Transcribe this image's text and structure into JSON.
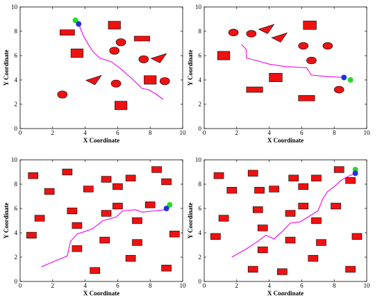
{
  "colors": {
    "obstacle": "#ee1111",
    "path": "#ee00ee",
    "start": "#2233dd",
    "goal": "#22dd22",
    "axis": "#000000"
  },
  "chart_data": [
    {
      "type": "scatter",
      "xlabel": "X Coordinate",
      "ylabel": "Y Coordinate",
      "xlim": [
        0,
        10
      ],
      "ylim": [
        0,
        10
      ],
      "xticks": [
        0,
        2,
        4,
        6,
        8,
        10
      ],
      "yticks": [
        0,
        2,
        4,
        6,
        8,
        10
      ],
      "start": [
        3.6,
        8.6
      ],
      "goal": [
        3.4,
        8.9
      ],
      "path": [
        [
          3.6,
          8.6
        ],
        [
          3.9,
          7.6
        ],
        [
          4.2,
          6.9
        ],
        [
          4.5,
          6.3
        ],
        [
          4.9,
          5.8
        ],
        [
          5.6,
          5.5
        ],
        [
          6.2,
          4.9
        ],
        [
          6.8,
          4.2
        ],
        [
          7.5,
          3.3
        ],
        [
          7.9,
          3.2
        ],
        [
          8.4,
          2.8
        ],
        [
          8.8,
          2.4
        ]
      ],
      "obstacles": [
        {
          "shape": "rect",
          "cx": 2.9,
          "cy": 7.9,
          "w": 0.9,
          "h": 0.45
        },
        {
          "shape": "rect",
          "cx": 3.5,
          "cy": 6.2,
          "w": 0.75,
          "h": 0.7
        },
        {
          "shape": "rect",
          "cx": 5.8,
          "cy": 8.5,
          "w": 0.75,
          "h": 0.65
        },
        {
          "shape": "rect",
          "cx": 7.5,
          "cy": 7.4,
          "w": 0.95,
          "h": 0.4
        },
        {
          "shape": "rect",
          "cx": 8.0,
          "cy": 4.0,
          "w": 0.75,
          "h": 0.7
        },
        {
          "shape": "rect",
          "cx": 6.2,
          "cy": 1.9,
          "w": 0.75,
          "h": 0.7
        },
        {
          "shape": "ellipse",
          "cx": 6.2,
          "cy": 7.1,
          "rx": 0.3,
          "ry": 0.3
        },
        {
          "shape": "ellipse",
          "cx": 5.8,
          "cy": 6.4,
          "rx": 0.3,
          "ry": 0.3
        },
        {
          "shape": "ellipse",
          "cx": 7.6,
          "cy": 5.7,
          "rx": 0.3,
          "ry": 0.3
        },
        {
          "shape": "ellipse",
          "cx": 5.9,
          "cy": 3.7,
          "rx": 0.3,
          "ry": 0.3
        },
        {
          "shape": "ellipse",
          "cx": 8.9,
          "cy": 3.9,
          "rx": 0.3,
          "ry": 0.3
        },
        {
          "shape": "ellipse",
          "cx": 2.6,
          "cy": 2.8,
          "rx": 0.3,
          "ry": 0.3
        },
        {
          "shape": "triangle",
          "cx": 4.5,
          "cy": 4.0,
          "size": 0.5
        },
        {
          "shape": "triangle",
          "cx": 8.5,
          "cy": 5.8,
          "size": 0.5
        }
      ]
    },
    {
      "type": "scatter",
      "xlabel": "X Coordinate",
      "ylabel": "Y Coordinate",
      "xlim": [
        0,
        10
      ],
      "ylim": [
        0,
        10
      ],
      "xticks": [
        0,
        2,
        4,
        6,
        8,
        10
      ],
      "yticks": [
        0,
        2,
        4,
        6,
        8,
        10
      ],
      "start": [
        8.6,
        4.2
      ],
      "goal": [
        9.0,
        4.0
      ],
      "path": [
        [
          2.3,
          6.9
        ],
        [
          2.6,
          6.5
        ],
        [
          2.6,
          5.8
        ],
        [
          3.2,
          5.6
        ],
        [
          4.0,
          5.3
        ],
        [
          5.0,
          5.1
        ],
        [
          6.3,
          5.0
        ],
        [
          6.6,
          4.4
        ],
        [
          7.4,
          4.3
        ],
        [
          8.6,
          4.2
        ]
      ],
      "obstacles": [
        {
          "shape": "rect",
          "cx": 6.5,
          "cy": 8.5,
          "w": 0.8,
          "h": 0.7
        },
        {
          "shape": "rect",
          "cx": 1.2,
          "cy": 6.0,
          "w": 0.75,
          "h": 0.7
        },
        {
          "shape": "rect",
          "cx": 4.4,
          "cy": 4.2,
          "w": 0.8,
          "h": 0.7
        },
        {
          "shape": "rect",
          "cx": 3.1,
          "cy": 3.2,
          "w": 1.0,
          "h": 0.45
        },
        {
          "shape": "rect",
          "cx": 6.3,
          "cy": 2.5,
          "w": 1.0,
          "h": 0.45
        },
        {
          "shape": "ellipse",
          "cx": 1.8,
          "cy": 7.9,
          "rx": 0.3,
          "ry": 0.28
        },
        {
          "shape": "ellipse",
          "cx": 2.9,
          "cy": 7.8,
          "rx": 0.3,
          "ry": 0.28
        },
        {
          "shape": "ellipse",
          "cx": 6.1,
          "cy": 6.8,
          "rx": 0.3,
          "ry": 0.28
        },
        {
          "shape": "ellipse",
          "cx": 7.6,
          "cy": 6.8,
          "rx": 0.3,
          "ry": 0.28
        },
        {
          "shape": "ellipse",
          "cx": 6.6,
          "cy": 5.6,
          "rx": 0.3,
          "ry": 0.28
        },
        {
          "shape": "ellipse",
          "cx": 8.3,
          "cy": 3.2,
          "rx": 0.3,
          "ry": 0.28
        },
        {
          "shape": "triangle",
          "cx": 3.8,
          "cy": 8.2,
          "size": 0.5
        },
        {
          "shape": "triangle",
          "cx": 4.6,
          "cy": 7.5,
          "size": 0.5
        }
      ]
    },
    {
      "type": "scatter",
      "xlabel": "X Coordinate",
      "ylabel": "Y Coordinate",
      "xlim": [
        0,
        10
      ],
      "ylim": [
        0,
        10
      ],
      "xticks": [
        0,
        2,
        4,
        6,
        8,
        10
      ],
      "yticks": [
        0,
        2,
        4,
        6,
        8,
        10
      ],
      "start": [
        9.0,
        6.0
      ],
      "goal": [
        9.2,
        6.3
      ],
      "path": [
        [
          1.3,
          1.2
        ],
        [
          2.0,
          1.6
        ],
        [
          2.9,
          2.1
        ],
        [
          3.1,
          3.3
        ],
        [
          3.5,
          3.9
        ],
        [
          4.4,
          4.3
        ],
        [
          5.1,
          5.0
        ],
        [
          5.9,
          5.3
        ],
        [
          6.3,
          5.8
        ],
        [
          7.1,
          5.9
        ],
        [
          7.5,
          5.7
        ],
        [
          8.2,
          5.8
        ],
        [
          8.9,
          5.9
        ],
        [
          9.0,
          6.0
        ]
      ],
      "obstacles": [
        {
          "shape": "rect",
          "cx": 0.8,
          "cy": 8.7,
          "w": 0.6,
          "h": 0.5
        },
        {
          "shape": "rect",
          "cx": 1.8,
          "cy": 7.4,
          "w": 0.6,
          "h": 0.5
        },
        {
          "shape": "rect",
          "cx": 2.9,
          "cy": 9.0,
          "w": 0.6,
          "h": 0.5
        },
        {
          "shape": "rect",
          "cx": 4.2,
          "cy": 7.6,
          "w": 0.6,
          "h": 0.5
        },
        {
          "shape": "rect",
          "cx": 5.3,
          "cy": 8.4,
          "w": 0.6,
          "h": 0.5
        },
        {
          "shape": "rect",
          "cx": 6.0,
          "cy": 7.8,
          "w": 0.6,
          "h": 0.5
        },
        {
          "shape": "rect",
          "cx": 6.8,
          "cy": 8.5,
          "w": 0.6,
          "h": 0.5
        },
        {
          "shape": "rect",
          "cx": 8.4,
          "cy": 9.2,
          "w": 0.6,
          "h": 0.5
        },
        {
          "shape": "rect",
          "cx": 9.0,
          "cy": 8.2,
          "w": 0.6,
          "h": 0.5
        },
        {
          "shape": "rect",
          "cx": 1.2,
          "cy": 5.2,
          "w": 0.6,
          "h": 0.5
        },
        {
          "shape": "rect",
          "cx": 0.7,
          "cy": 3.8,
          "w": 0.6,
          "h": 0.5
        },
        {
          "shape": "rect",
          "cx": 3.2,
          "cy": 5.8,
          "w": 0.6,
          "h": 0.5
        },
        {
          "shape": "rect",
          "cx": 3.5,
          "cy": 4.6,
          "w": 0.6,
          "h": 0.5
        },
        {
          "shape": "rect",
          "cx": 3.5,
          "cy": 2.7,
          "w": 0.6,
          "h": 0.5
        },
        {
          "shape": "rect",
          "cx": 5.3,
          "cy": 5.6,
          "w": 0.6,
          "h": 0.5
        },
        {
          "shape": "rect",
          "cx": 6.0,
          "cy": 6.2,
          "w": 0.6,
          "h": 0.5
        },
        {
          "shape": "rect",
          "cx": 5.2,
          "cy": 3.4,
          "w": 0.6,
          "h": 0.5
        },
        {
          "shape": "rect",
          "cx": 7.2,
          "cy": 5.0,
          "w": 0.6,
          "h": 0.5
        },
        {
          "shape": "rect",
          "cx": 7.2,
          "cy": 3.2,
          "w": 0.6,
          "h": 0.5
        },
        {
          "shape": "rect",
          "cx": 8.0,
          "cy": 6.3,
          "w": 0.6,
          "h": 0.5
        },
        {
          "shape": "rect",
          "cx": 9.5,
          "cy": 3.9,
          "w": 0.6,
          "h": 0.5
        },
        {
          "shape": "rect",
          "cx": 6.8,
          "cy": 1.9,
          "w": 0.6,
          "h": 0.5
        },
        {
          "shape": "rect",
          "cx": 4.6,
          "cy": 0.9,
          "w": 0.6,
          "h": 0.5
        },
        {
          "shape": "rect",
          "cx": 9.0,
          "cy": 1.1,
          "w": 0.6,
          "h": 0.5
        }
      ]
    },
    {
      "type": "scatter",
      "xlabel": "X Coordinate",
      "ylabel": "Y Coordinate",
      "xlim": [
        0,
        10
      ],
      "ylim": [
        0,
        10
      ],
      "xticks": [
        0,
        2,
        4,
        6,
        8,
        10
      ],
      "yticks": [
        0,
        2,
        4,
        6,
        8,
        10
      ],
      "start": [
        9.3,
        8.9
      ],
      "goal": [
        9.3,
        9.2
      ],
      "path": [
        [
          1.7,
          2.0
        ],
        [
          2.5,
          2.6
        ],
        [
          3.3,
          3.3
        ],
        [
          3.8,
          3.8
        ],
        [
          4.3,
          3.5
        ],
        [
          4.8,
          4.1
        ],
        [
          5.3,
          4.8
        ],
        [
          5.9,
          4.9
        ],
        [
          6.5,
          5.4
        ],
        [
          7.0,
          5.8
        ],
        [
          7.3,
          6.8
        ],
        [
          7.6,
          7.4
        ],
        [
          8.0,
          7.8
        ],
        [
          8.4,
          8.3
        ],
        [
          8.8,
          8.6
        ],
        [
          9.3,
          8.9
        ]
      ],
      "obstacles": [
        {
          "shape": "rect",
          "cx": 0.9,
          "cy": 8.7,
          "w": 0.6,
          "h": 0.5
        },
        {
          "shape": "rect",
          "cx": 1.7,
          "cy": 7.5,
          "w": 0.6,
          "h": 0.5
        },
        {
          "shape": "rect",
          "cx": 3.0,
          "cy": 8.9,
          "w": 0.6,
          "h": 0.5
        },
        {
          "shape": "rect",
          "cx": 3.4,
          "cy": 7.5,
          "w": 0.6,
          "h": 0.5
        },
        {
          "shape": "rect",
          "cx": 4.3,
          "cy": 7.6,
          "w": 0.6,
          "h": 0.5
        },
        {
          "shape": "rect",
          "cx": 5.5,
          "cy": 8.5,
          "w": 0.6,
          "h": 0.5
        },
        {
          "shape": "rect",
          "cx": 6.1,
          "cy": 7.8,
          "w": 0.6,
          "h": 0.5
        },
        {
          "shape": "rect",
          "cx": 6.9,
          "cy": 8.5,
          "w": 0.6,
          "h": 0.5
        },
        {
          "shape": "rect",
          "cx": 8.3,
          "cy": 9.2,
          "w": 0.6,
          "h": 0.5
        },
        {
          "shape": "rect",
          "cx": 9.0,
          "cy": 8.3,
          "w": 0.6,
          "h": 0.5
        },
        {
          "shape": "rect",
          "cx": 1.2,
          "cy": 5.2,
          "w": 0.6,
          "h": 0.5
        },
        {
          "shape": "rect",
          "cx": 0.7,
          "cy": 3.7,
          "w": 0.6,
          "h": 0.5
        },
        {
          "shape": "rect",
          "cx": 3.3,
          "cy": 5.9,
          "w": 0.6,
          "h": 0.5
        },
        {
          "shape": "rect",
          "cx": 3.6,
          "cy": 4.4,
          "w": 0.6,
          "h": 0.5
        },
        {
          "shape": "rect",
          "cx": 3.6,
          "cy": 2.6,
          "w": 0.6,
          "h": 0.5
        },
        {
          "shape": "rect",
          "cx": 5.3,
          "cy": 5.6,
          "w": 0.6,
          "h": 0.5
        },
        {
          "shape": "rect",
          "cx": 6.1,
          "cy": 6.2,
          "w": 0.6,
          "h": 0.5
        },
        {
          "shape": "rect",
          "cx": 5.3,
          "cy": 3.4,
          "w": 0.6,
          "h": 0.5
        },
        {
          "shape": "rect",
          "cx": 6.9,
          "cy": 5.0,
          "w": 0.6,
          "h": 0.5
        },
        {
          "shape": "rect",
          "cx": 7.2,
          "cy": 3.2,
          "w": 0.6,
          "h": 0.5
        },
        {
          "shape": "rect",
          "cx": 8.1,
          "cy": 6.2,
          "w": 0.6,
          "h": 0.5
        },
        {
          "shape": "rect",
          "cx": 9.4,
          "cy": 3.7,
          "w": 0.6,
          "h": 0.5
        },
        {
          "shape": "rect",
          "cx": 6.7,
          "cy": 1.9,
          "w": 0.6,
          "h": 0.5
        },
        {
          "shape": "rect",
          "cx": 4.8,
          "cy": 0.8,
          "w": 0.6,
          "h": 0.5
        },
        {
          "shape": "rect",
          "cx": 9.0,
          "cy": 1.0,
          "w": 0.6,
          "h": 0.5
        },
        {
          "shape": "rect",
          "cx": 3.0,
          "cy": 1.0,
          "w": 0.6,
          "h": 0.5
        }
      ]
    }
  ]
}
